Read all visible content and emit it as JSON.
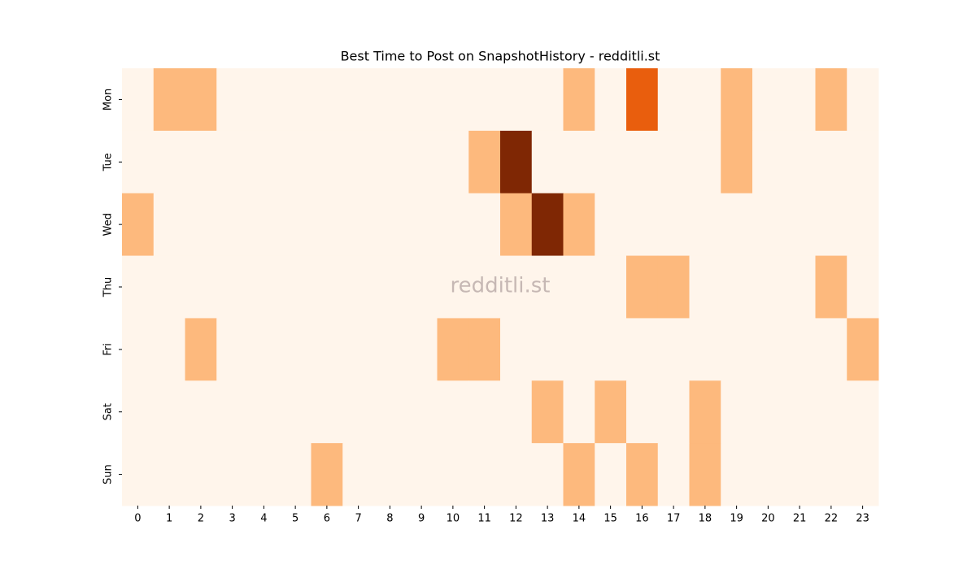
{
  "chart_data": {
    "type": "heatmap",
    "title": "Best Time to Post on SnapshotHistory - redditli.st",
    "watermark": "redditli.st",
    "x": [
      0,
      1,
      2,
      3,
      4,
      5,
      6,
      7,
      8,
      9,
      10,
      11,
      12,
      13,
      14,
      15,
      16,
      17,
      18,
      19,
      20,
      21,
      22,
      23
    ],
    "categories": [
      "Mon",
      "Tue",
      "Wed",
      "Thu",
      "Fri",
      "Sat",
      "Sun"
    ],
    "values": [
      [
        0,
        1,
        1,
        0,
        0,
        0,
        0,
        0,
        0,
        0,
        0,
        0,
        0,
        0,
        1,
        0,
        2,
        0,
        0,
        1,
        0,
        0,
        1,
        0
      ],
      [
        0,
        0,
        0,
        0,
        0,
        0,
        0,
        0,
        0,
        0,
        0,
        1,
        3,
        0,
        0,
        0,
        0,
        0,
        0,
        1,
        0,
        0,
        0,
        0
      ],
      [
        1,
        0,
        0,
        0,
        0,
        0,
        0,
        0,
        0,
        0,
        0,
        0,
        1,
        3,
        1,
        0,
        0,
        0,
        0,
        0,
        0,
        0,
        0,
        0
      ],
      [
        0,
        0,
        0,
        0,
        0,
        0,
        0,
        0,
        0,
        0,
        0,
        0,
        0,
        0,
        0,
        0,
        1,
        1,
        0,
        0,
        0,
        0,
        1,
        0
      ],
      [
        0,
        0,
        1,
        0,
        0,
        0,
        0,
        0,
        0,
        0,
        1,
        1,
        0,
        0,
        0,
        0,
        0,
        0,
        0,
        0,
        0,
        0,
        0,
        1
      ],
      [
        0,
        0,
        0,
        0,
        0,
        0,
        0,
        0,
        0,
        0,
        0,
        0,
        0,
        1,
        0,
        1,
        0,
        0,
        1,
        0,
        0,
        0,
        0,
        0
      ],
      [
        0,
        0,
        0,
        0,
        0,
        0,
        1,
        0,
        0,
        0,
        0,
        0,
        0,
        0,
        1,
        0,
        1,
        0,
        1,
        0,
        0,
        0,
        0,
        0
      ]
    ],
    "zlim": [
      0,
      3
    ],
    "colorscale": [
      "#fff5eb",
      "#fdb97d",
      "#e95e0d",
      "#7f2704"
    ]
  }
}
